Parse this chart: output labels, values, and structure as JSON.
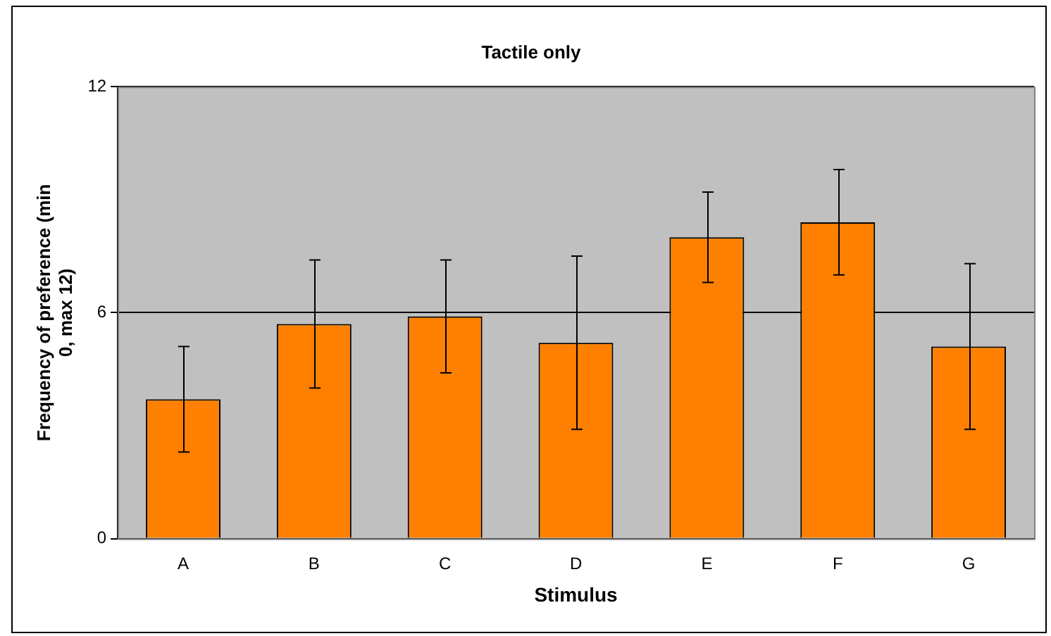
{
  "chart_data": {
    "type": "bar",
    "title": "Tactile only",
    "xlabel": "Stimulus",
    "ylabel": "Frequency of preference (min 0, max 12)",
    "categories": [
      "A",
      "B",
      "C",
      "D",
      "E",
      "F",
      "G"
    ],
    "values": [
      3.7,
      5.7,
      5.9,
      5.2,
      8.0,
      8.4,
      5.1
    ],
    "errors": [
      1.4,
      1.7,
      1.5,
      2.3,
      1.2,
      1.4,
      2.2
    ],
    "color": "#ff8000",
    "ylim": [
      0,
      12
    ],
    "yticks": [
      0,
      6,
      12
    ],
    "grid": "y",
    "legend": false
  }
}
